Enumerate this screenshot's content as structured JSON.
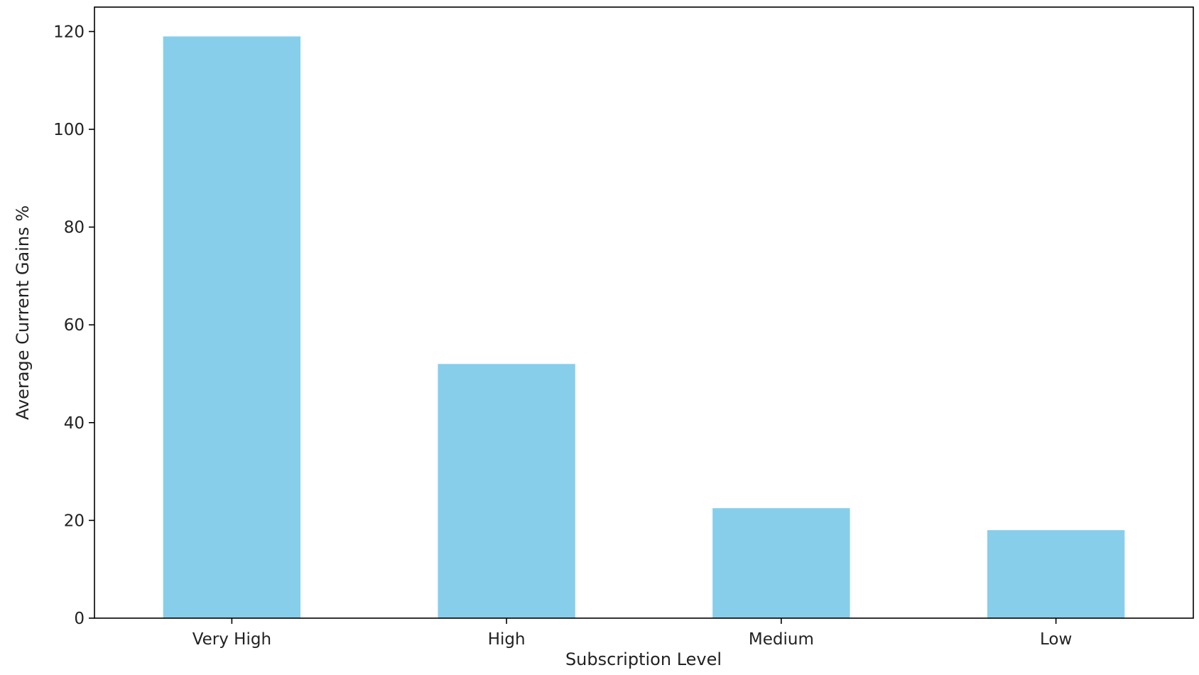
{
  "chart_data": {
    "type": "bar",
    "title": "",
    "xlabel": "Subscription Level",
    "ylabel": "Average Current Gains %",
    "categories": [
      "Very High",
      "High",
      "Medium",
      "Low"
    ],
    "values": [
      119,
      52,
      22.5,
      18
    ],
    "ylim": [
      0,
      125
    ],
    "yticks": [
      0,
      20,
      40,
      60,
      80,
      100,
      120
    ],
    "grid": false,
    "legend": "none",
    "bar_color": "#87CEEB",
    "axis_color": "#000000"
  }
}
